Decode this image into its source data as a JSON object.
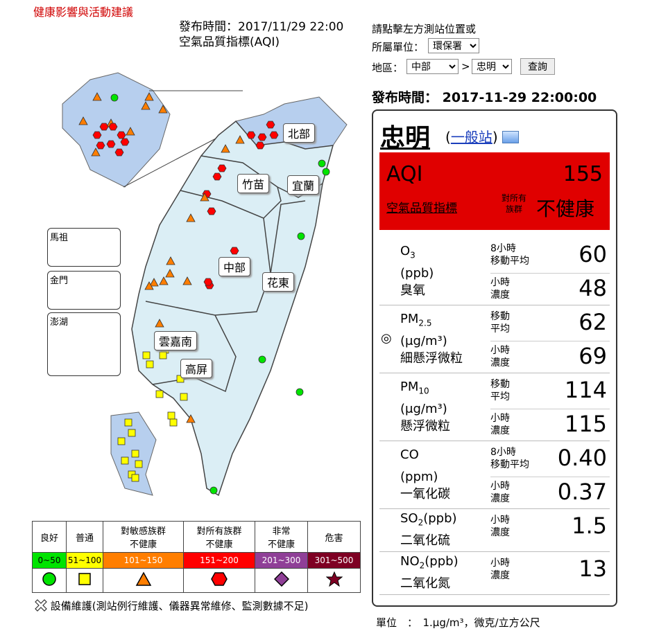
{
  "header": {
    "health_link": "健康影響與活動建議",
    "publish_time_label": "發布時間：2017/11/29 22:00",
    "index_name": "空氣品質指標(AQI)"
  },
  "controls": {
    "instruction": "請點擊左方測站位置或",
    "agency_label": "所屬單位：",
    "agency_value": "環保署",
    "region_label": "地區：",
    "region_value": "中部",
    "arrow": ">",
    "station_value": "忠明",
    "query_button": "查詢",
    "publish_time": "發布時間： 2017-11-29 22:00:00"
  },
  "map": {
    "regions": [
      "北部",
      "竹苗",
      "宜蘭",
      "中部",
      "花東",
      "雲嘉南",
      "高屏"
    ],
    "islands": [
      "馬祖",
      "金門",
      "澎湖"
    ]
  },
  "legend": {
    "columns": [
      {
        "name": "良好",
        "range": "0~50",
        "color": "#00e400",
        "symbol": "circle"
      },
      {
        "name": "普通",
        "range": "51~100",
        "color": "#ffff00",
        "symbol": "square"
      },
      {
        "name": "對敏感族群\n不健康",
        "range": "101~150",
        "color": "#ff7e00",
        "symbol": "triangle"
      },
      {
        "name": "對所有族群\n不健康",
        "range": "151~200",
        "color": "#ff0000",
        "symbol": "hexagon"
      },
      {
        "name": "非常\n不健康",
        "range": "201~300",
        "color": "#8f3f97",
        "symbol": "diamond"
      },
      {
        "name": "危害",
        "range": "301~500",
        "color": "#7e0023",
        "symbol": "star"
      }
    ],
    "maintenance": "設備維護(測站例行維護、儀器異常維修、監測數據不足)"
  },
  "station": {
    "name": "忠明",
    "type": "一般站",
    "aqi_label": "AQI",
    "aqi_value": "155",
    "aqi_sub": "空氣品質指標",
    "who": "對所有\n族群",
    "status": "不健康",
    "aqi_color": "#e00000",
    "pollutants": [
      {
        "name_main": "O",
        "name_sub": "3",
        "unit": "(ppb)",
        "zh": "臭氧",
        "rows": [
          {
            "label": "8小時\n移動平均",
            "value": "60"
          },
          {
            "label": "小時\n濃度",
            "value": "48"
          }
        ]
      },
      {
        "name_main": "PM",
        "name_sub": "2.5",
        "unit": "(μg/m³)",
        "zh": "細懸浮微粒",
        "mark": "◎",
        "rows": [
          {
            "label": "移動\n平均",
            "value": "62"
          },
          {
            "label": "小時\n濃度",
            "value": "69"
          }
        ]
      },
      {
        "name_main": "PM",
        "name_sub": "10",
        "unit": "(μg/m³)",
        "zh": "懸浮微粒",
        "rows": [
          {
            "label": "移動\n平均",
            "value": "114"
          },
          {
            "label": "小時\n濃度",
            "value": "115"
          }
        ]
      },
      {
        "name_main": "CO",
        "name_sub": "",
        "unit": "(ppm)",
        "zh": "一氧化碳",
        "rows": [
          {
            "label": "8小時\n移動平均",
            "value": "0.40"
          },
          {
            "label": "小時\n濃度",
            "value": "0.37"
          }
        ]
      },
      {
        "name_main": "SO",
        "name_sub": "2",
        "unit": "(ppb)",
        "zh": "二氧化硫",
        "rows": [
          {
            "label": "小時\n濃度",
            "value": "1.5"
          }
        ]
      },
      {
        "name_main": "NO",
        "name_sub": "2",
        "unit": "(ppb)",
        "zh": "二氧化氮",
        "rows": [
          {
            "label": "小時\n濃度",
            "value": "13"
          }
        ]
      }
    ]
  },
  "unit_note": "單位　：　1.μg/m³，微克/立方公尺"
}
